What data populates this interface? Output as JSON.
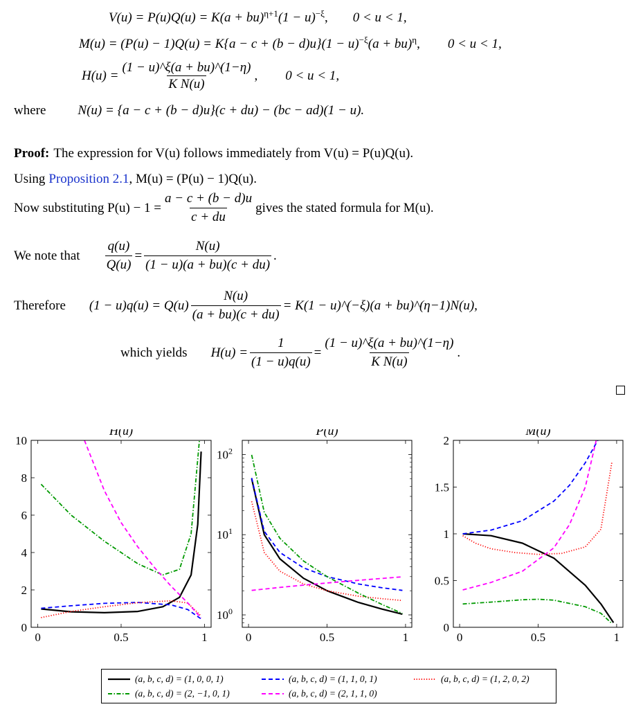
{
  "equations": {
    "V": {
      "lhs": "V(u) = P(u)Q(u) = K(a + bu)",
      "exp1": "η+1",
      "mid": "(1 − u)",
      "exp2": "−ξ",
      "tail": ",",
      "range": "0 < u < 1,"
    },
    "M": {
      "lhs": "M(u) = (P(u) − 1)Q(u) = K{a − c + (b − d)u}(1 − u)",
      "exp1": "−ξ",
      "mid": "(a + bu)",
      "exp2": "η",
      "tail": ",",
      "range": "0 < u < 1,"
    },
    "H": {
      "lhs": "H(u) =",
      "num": "(1 − u)^ξ(a + bu)^(1−η)",
      "den": "K N(u)",
      "tail": ",",
      "range": "0 < u < 1,"
    },
    "N": {
      "where": "where",
      "text": "N(u) = {a − c + (b − d)u}(c + du) − (bc − ad)(1 − u)."
    }
  },
  "proof": {
    "label": "Proof:",
    "line1": "The expression for V(u) follows immediately from V(u) = P(u)Q(u).",
    "line2_pre": "Using",
    "line2_link": "Proposition 2.1",
    "line2_post": ", M(u) = (P(u) − 1)Q(u).",
    "line3_pre": "Now substituting P(u) − 1 =",
    "line3_num": "a − c + (b − d)u",
    "line3_den": "c + du",
    "line3_post": "gives the stated formula for M(u).",
    "line4_pre": "We note that",
    "line4_lnum": "q(u)",
    "line4_lden": "Q(u)",
    "line4_rnum": "N(u)",
    "line4_rden": "(1 − u)(a + bu)(c + du)",
    "line5_pre": "Therefore",
    "line5_lhs": "(1 − u)q(u) = Q(u)",
    "line5_num": "N(u)",
    "line5_den": "(a + bu)(c + du)",
    "line5_rhs": "= K(1 − u)^(−ξ)(a + bu)^(η−1)N(u),",
    "line6_pre": "which yields",
    "line6_lhs": "H(u) =",
    "line6_num1": "1",
    "line6_den1": "(1 − u)q(u)",
    "line6_num2": "(1 − u)^ξ(a + bu)^(1−η)",
    "line6_den2": "K N(u)"
  },
  "colors": {
    "black": "#000000",
    "blue": "#0000ff",
    "red": "#ff0000",
    "green": "#009900",
    "magenta": "#ff00ff"
  },
  "chart_data": [
    {
      "type": "line",
      "title": "H(u)",
      "xlim": [
        0,
        1
      ],
      "ylim": [
        0,
        10
      ],
      "xticks": [
        "0",
        "0.5",
        "1"
      ],
      "yticks": [
        "0",
        "2",
        "4",
        "6",
        "8",
        "10"
      ],
      "series": [
        {
          "name": "(a, b, c, d) = (1, 0, 0, 1)",
          "x": [
            0.02,
            0.2,
            0.4,
            0.6,
            0.75,
            0.85,
            0.92,
            0.96,
            0.98
          ],
          "y": [
            0.98,
            0.83,
            0.78,
            0.85,
            1.1,
            1.6,
            2.8,
            5.5,
            9.4
          ]
        },
        {
          "name": "(a, b, c, d) = (1, 1, 0, 1)",
          "x": [
            0.02,
            0.2,
            0.4,
            0.6,
            0.8,
            0.9,
            0.98
          ],
          "y": [
            1.02,
            1.15,
            1.28,
            1.33,
            1.2,
            0.95,
            0.45
          ]
        },
        {
          "name": "(a, b, c, d) = (1, 2, 0, 2)",
          "x": [
            0.02,
            0.2,
            0.4,
            0.6,
            0.8,
            0.9,
            0.98
          ],
          "y": [
            0.52,
            0.85,
            1.1,
            1.32,
            1.42,
            1.3,
            0.6
          ]
        },
        {
          "name": "(a, b, c, d) = (2, −1, 0, 1)",
          "x": [
            0.02,
            0.2,
            0.4,
            0.6,
            0.75,
            0.85,
            0.92,
            0.97
          ],
          "y": [
            7.65,
            6.0,
            4.6,
            3.4,
            2.8,
            3.1,
            5.0,
            10.0
          ]
        },
        {
          "name": "(a, b, c, d) = (2, 1, 1, 0)",
          "x": [
            0.28,
            0.4,
            0.5,
            0.6,
            0.7,
            0.8,
            0.9,
            0.98
          ],
          "y": [
            10.0,
            7.3,
            5.6,
            4.3,
            3.2,
            2.2,
            1.3,
            0.5
          ]
        }
      ]
    },
    {
      "type": "line",
      "title": "P(u)",
      "xlim": [
        0,
        1
      ],
      "ylim": [
        0.7,
        150
      ],
      "yscale": "log",
      "xticks": [
        "0",
        "0.5",
        "1"
      ],
      "yticks": [
        "10^0",
        "10^1",
        "10^2"
      ],
      "series": [
        {
          "name": "(a, b, c, d) = (1, 0, 0, 1)",
          "x": [
            0.02,
            0.1,
            0.2,
            0.35,
            0.5,
            0.7,
            0.85,
            0.98
          ],
          "y": [
            50,
            10,
            5,
            2.86,
            2,
            1.43,
            1.18,
            1.02
          ]
        },
        {
          "name": "(a, b, c, d) = (1, 1, 0, 1)",
          "x": [
            0.02,
            0.1,
            0.2,
            0.35,
            0.5,
            0.7,
            0.85,
            0.98
          ],
          "y": [
            51,
            11,
            6,
            3.86,
            3,
            2.43,
            2.18,
            2.02
          ]
        },
        {
          "name": "(a, b, c, d) = (1, 2, 0, 2)",
          "x": [
            0.02,
            0.1,
            0.2,
            0.35,
            0.5,
            0.7,
            0.85,
            0.98
          ],
          "y": [
            26,
            6,
            3.5,
            2.43,
            2,
            1.71,
            1.59,
            1.51
          ]
        },
        {
          "name": "(a, b, c, d) = (2, −1, 0, 1)",
          "x": [
            0.02,
            0.1,
            0.2,
            0.35,
            0.5,
            0.7,
            0.85,
            0.98
          ],
          "y": [
            99,
            19,
            9,
            4.7,
            3,
            1.86,
            1.35,
            1.04
          ]
        },
        {
          "name": "(a, b, c, d) = (2, 1, 1, 0)",
          "x": [
            0.02,
            0.2,
            0.4,
            0.6,
            0.8,
            0.98
          ],
          "y": [
            2.02,
            2.2,
            2.4,
            2.6,
            2.8,
            2.98
          ]
        }
      ]
    },
    {
      "type": "line",
      "title": "M(u)",
      "xlim": [
        0,
        1
      ],
      "ylim": [
        0,
        2
      ],
      "xticks": [
        "0",
        "0.5",
        "1"
      ],
      "yticks": [
        "0",
        "0.5",
        "1",
        "1.5",
        "2"
      ],
      "series": [
        {
          "name": "(a, b, c, d) = (1, 0, 0, 1)",
          "x": [
            0.02,
            0.2,
            0.4,
            0.6,
            0.8,
            0.9,
            0.98
          ],
          "y": [
            1.0,
            0.98,
            0.9,
            0.74,
            0.45,
            0.25,
            0.05
          ]
        },
        {
          "name": "(a, b, c, d) = (1, 1, 0, 1)",
          "x": [
            0.02,
            0.2,
            0.4,
            0.6,
            0.7,
            0.8,
            0.88
          ],
          "y": [
            1.0,
            1.04,
            1.14,
            1.35,
            1.52,
            1.76,
            2.0
          ]
        },
        {
          "name": "(a, b, c, d) = (1, 2, 0, 2)",
          "x": [
            0.02,
            0.1,
            0.2,
            0.35,
            0.5,
            0.65,
            0.8,
            0.9,
            0.97
          ],
          "y": [
            0.98,
            0.9,
            0.84,
            0.8,
            0.78,
            0.79,
            0.86,
            1.05,
            1.77
          ]
        },
        {
          "name": "(a, b, c, d) = (2, −1, 0, 1)",
          "x": [
            0.02,
            0.2,
            0.4,
            0.5,
            0.6,
            0.8,
            0.9,
            0.97
          ],
          "y": [
            0.25,
            0.27,
            0.295,
            0.3,
            0.29,
            0.22,
            0.15,
            0.04
          ]
        },
        {
          "name": "(a, b, c, d) = (2, 1, 1, 0)",
          "x": [
            0.02,
            0.2,
            0.4,
            0.6,
            0.7,
            0.8,
            0.87
          ],
          "y": [
            0.4,
            0.48,
            0.6,
            0.85,
            1.1,
            1.5,
            2.0
          ]
        }
      ]
    }
  ],
  "legend": [
    {
      "label": "(a, b, c, d) = (1, 0, 0, 1)"
    },
    {
      "label": "(a, b, c, d) = (1, 1, 0, 1)"
    },
    {
      "label": "(a, b, c, d) = (1, 2, 0, 2)"
    },
    {
      "label": "(a, b, c, d) = (2, −1, 0, 1)"
    },
    {
      "label": "(a, b, c, d) = (2, 1, 1, 0)"
    }
  ]
}
